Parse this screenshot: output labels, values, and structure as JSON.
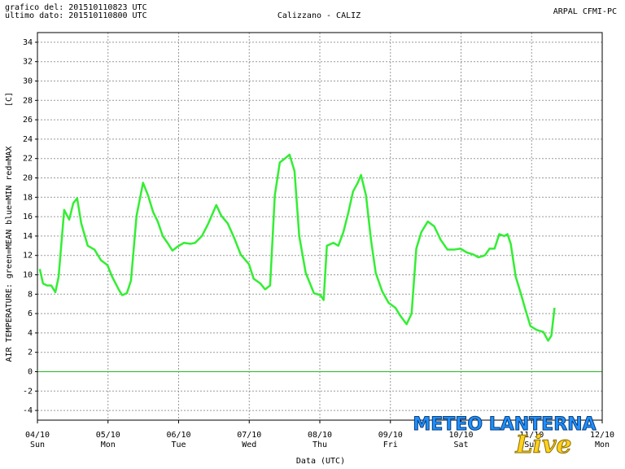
{
  "header": {
    "left_lines": [
      "grafico del: 201510110823 UTC",
      "ultimo dato: 201510110800 UTC"
    ],
    "center": "Calizzano - CALIZ",
    "right": "ARPAL CFMI-PC"
  },
  "watermark": [
    "METEO LANTERNA",
    "Live"
  ],
  "chart_data": {
    "type": "line",
    "ylabel": "AIR TEMPERATURE: green=MEAN  blue=MIN  red=MAX",
    "yunit": "[C]",
    "xlabel": "Data (UTC)",
    "xlim": [
      0,
      192
    ],
    "xticks": [
      {
        "value": 0,
        "label": "04/10"
      },
      {
        "value": 24,
        "label": "05/10"
      },
      {
        "value": 48,
        "label": "06/10"
      },
      {
        "value": 72,
        "label": "07/10"
      },
      {
        "value": 96,
        "label": "08/10"
      },
      {
        "value": 120,
        "label": "09/10"
      },
      {
        "value": 144,
        "label": "10/10"
      },
      {
        "value": 168,
        "label": "11/10"
      },
      {
        "value": 192,
        "label": "12/10"
      }
    ],
    "xtick_days": [
      "Sun",
      "Mon",
      "Tue",
      "Wed",
      "Thu",
      "Fri",
      "Sat",
      "Sun",
      "Mon"
    ],
    "ylim": [
      -5,
      35
    ],
    "yticks": [
      -4,
      -2,
      0,
      2,
      4,
      6,
      8,
      10,
      12,
      14,
      16,
      18,
      20,
      22,
      24,
      26,
      28,
      30,
      32,
      34
    ],
    "grid": true,
    "hline": {
      "value": 0,
      "color": "#22bb22"
    },
    "series": [
      {
        "name": "MEAN",
        "color": "#33ee33",
        "x": [
          0.8,
          1.9,
          3.3,
          4.7,
          6.1,
          7.2,
          9.1,
          10.8,
          12.2,
          13.5,
          14.9,
          17.1,
          19.4,
          21.6,
          23.8,
          25.4,
          27.6,
          28.8,
          30.4,
          31.8,
          33.7,
          35.9,
          37.6,
          39.3,
          40.9,
          42.6,
          44.2,
          45.9,
          47.6,
          49.8,
          52,
          53.6,
          55.9,
          58.1,
          60.8,
          62.5,
          64.7,
          66.9,
          69.1,
          71.9,
          73.5,
          75.8,
          77.4,
          79.1,
          80.7,
          82.4,
          84.1,
          85.7,
          87.4,
          89,
          91.2,
          94,
          96.2,
          97.3,
          98.4,
          100.6,
          102.3,
          104,
          105.6,
          107.3,
          108.9,
          110,
          111.7,
          113.4,
          115,
          117.2,
          119.4,
          121.7,
          123.3,
          125.5,
          127.2,
          128.8,
          130.5,
          132.7,
          134.9,
          137.1,
          139.4,
          141.6,
          143.8,
          146,
          148.2,
          149.9,
          152.1,
          153.7,
          155.4,
          157,
          158.7,
          159.8,
          160.9,
          162.6,
          164.3,
          165.9,
          167.6,
          169.8,
          172,
          173.6,
          174.7,
          175.8
        ],
        "values": [
          10.6,
          9.1,
          8.9,
          8.9,
          8.2,
          9.8,
          16.7,
          15.7,
          17.4,
          17.9,
          15.3,
          13,
          12.6,
          11.5,
          11,
          9.8,
          8.5,
          7.9,
          8.1,
          9.4,
          16.1,
          19.5,
          18.2,
          16.5,
          15.5,
          14,
          13.3,
          12.5,
          12.9,
          13.3,
          13.2,
          13.3,
          14,
          15.3,
          17.2,
          16.1,
          15.3,
          13.8,
          12.1,
          11.1,
          9.6,
          9.1,
          8.5,
          8.9,
          18.2,
          21.6,
          22,
          22.4,
          20.7,
          14,
          10.2,
          8.1,
          7.9,
          7.4,
          13,
          13.3,
          13,
          14.4,
          16.3,
          18.6,
          19.5,
          20.3,
          18.2,
          13.6,
          10.2,
          8.3,
          7.1,
          6.6,
          5.8,
          4.9,
          6,
          12.7,
          14.4,
          15.5,
          15,
          13.6,
          12.6,
          12.6,
          12.7,
          12.3,
          12.1,
          11.8,
          12,
          12.7,
          12.7,
          14.2,
          14,
          14.2,
          13.2,
          9.8,
          8.1,
          6.4,
          4.7,
          4.3,
          4.1,
          3.2,
          3.7,
          6.6
        ]
      }
    ]
  }
}
